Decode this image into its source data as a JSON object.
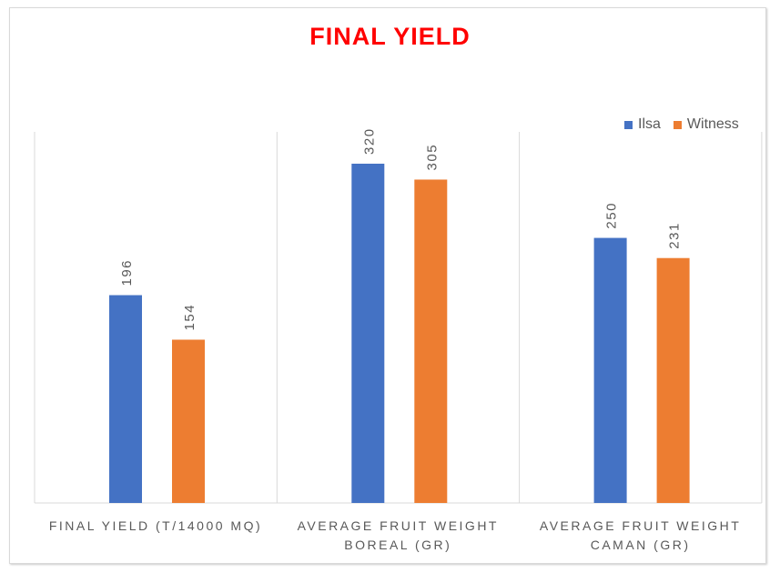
{
  "chart_data": {
    "type": "bar",
    "title": "FINAL YIELD",
    "categories": [
      "FINAL YIELD (T/14000 MQ)",
      "AVERAGE FRUIT WEIGHT BOREAL (GR)",
      "AVERAGE FRUIT WEIGHT CAMAN (GR)"
    ],
    "category_lines": [
      [
        "FINAL YIELD (T/14000 MQ)"
      ],
      [
        "AVERAGE FRUIT WEIGHT",
        "BOREAL (GR)"
      ],
      [
        "AVERAGE FRUIT WEIGHT",
        "CAMAN (GR)"
      ]
    ],
    "series": [
      {
        "name": "Ilsa",
        "color": "#4472c4",
        "values": [
          196,
          320,
          250
        ]
      },
      {
        "name": "Witness",
        "color": "#ed7d31",
        "values": [
          154,
          305,
          231
        ]
      }
    ],
    "ylim": [
      0,
      350
    ],
    "xlabel": "",
    "ylabel": "",
    "legend": "top-right",
    "grid": "vertical category separators"
  }
}
